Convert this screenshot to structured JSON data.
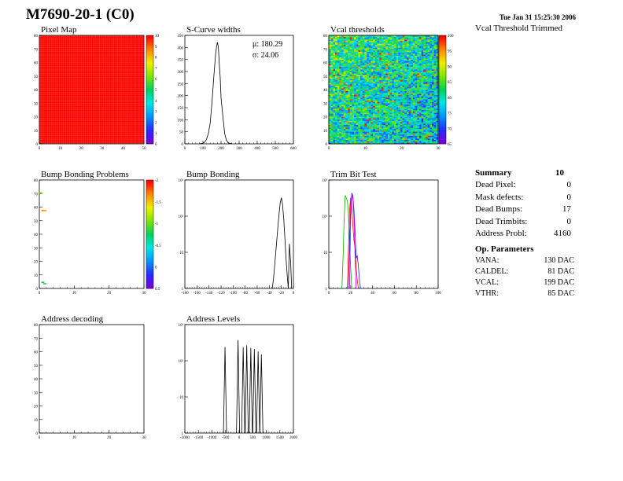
{
  "header": {
    "title": "M7690-20-1 (C0)",
    "timestamp": "Tue Jan 31 15:25:30 2006",
    "subtitle": "Vcal Threshold Trimmed"
  },
  "colors": {
    "frame": "#000000",
    "red": "#ff0000",
    "green": "#00b000",
    "blue": "#2020ff",
    "magenta": "#e000e0"
  },
  "summary": {
    "title": "Summary",
    "total": "10",
    "rows": [
      {
        "label": "Dead Pixel:",
        "value": "0"
      },
      {
        "label": "Mask defects:",
        "value": "0"
      },
      {
        "label": "Dead Bumps:",
        "value": "17"
      },
      {
        "label": "Dead Trimbits:",
        "value": "0"
      },
      {
        "label": "Address Probl:",
        "value": "4160"
      }
    ]
  },
  "op_params": {
    "title": "Op. Parameters",
    "rows": [
      {
        "label": "VANA:",
        "value": "130 DAC"
      },
      {
        "label": "CALDEL:",
        "value": "81 DAC"
      },
      {
        "label": "VCAL:",
        "value": "199 DAC"
      },
      {
        "label": "VTHR:",
        "value": "85 DAC"
      }
    ]
  },
  "chart_data": [
    {
      "type": "heatmap",
      "title": "Pixel Map",
      "x_ticks": [
        "0",
        "10",
        "20",
        "30",
        "40",
        "50"
      ],
      "y_ticks": [
        "0",
        "10",
        "20",
        "30",
        "40",
        "50",
        "60",
        "70",
        "80"
      ],
      "palette_ticks": [
        "0",
        "1",
        "2",
        "3",
        "4",
        "5",
        "6",
        "7",
        "8",
        "9",
        "10"
      ],
      "uniform_value": 10
    },
    {
      "type": "line",
      "title": "S-Curve widths",
      "x_ticks": [
        "0",
        "100",
        "200",
        "300",
        "400",
        "500",
        "600"
      ],
      "y_ticks": [
        "0",
        "50",
        "100",
        "150",
        "200",
        "250",
        "300",
        "350",
        "400",
        "450"
      ],
      "xlim": [
        0,
        600
      ],
      "ylim": [
        0,
        470
      ],
      "stats": [
        "μ: 180.29",
        "σ: 24.06"
      ],
      "x": [
        80,
        100,
        110,
        120,
        130,
        140,
        150,
        160,
        170,
        175,
        180,
        185,
        190,
        195,
        200,
        210,
        220,
        230,
        240,
        260
      ],
      "y": [
        0,
        3,
        8,
        20,
        45,
        90,
        180,
        290,
        390,
        420,
        440,
        420,
        350,
        290,
        200,
        120,
        45,
        15,
        4,
        0
      ]
    },
    {
      "type": "heatmap",
      "title": "Vcal thresholds",
      "x_ticks": [
        "0",
        "10",
        "20",
        "30"
      ],
      "y_ticks": [
        "0",
        "10",
        "20",
        "30",
        "40",
        "50",
        "60",
        "70",
        "80"
      ],
      "palette_ticks": [
        "65",
        "70",
        "75",
        "80",
        "85",
        "90",
        "95",
        "100"
      ],
      "range": [
        63,
        103
      ]
    },
    {
      "type": "heatmap",
      "title": "Bump Bonding Problems",
      "x_ticks": [
        "0",
        "10",
        "20",
        "30"
      ],
      "y_ticks": [
        "0",
        "10",
        "20",
        "30",
        "40",
        "50",
        "60",
        "70",
        "80"
      ],
      "palette_ticks": [
        "0.5",
        "0",
        "-0.5",
        "-1",
        "-1.5",
        "-2"
      ],
      "hot_pixels": [
        [
          1,
          57
        ],
        [
          2,
          57
        ],
        [
          0,
          70
        ],
        [
          1,
          4
        ],
        [
          2,
          3
        ]
      ]
    },
    {
      "type": "line",
      "title": "Bump Bonding",
      "x_ticks": [
        "-180",
        "-160",
        "-140",
        "-120",
        "-100",
        "-80",
        "-60",
        "-40",
        "-20",
        "0"
      ],
      "y_ticks": [
        "1",
        "10",
        "10²",
        "10³"
      ],
      "log_y": true,
      "xlim": [
        -185,
        5
      ],
      "x": [
        -32,
        -30,
        -28,
        -26,
        -24,
        -22,
        -20,
        -18,
        -16,
        -14,
        -12,
        -10,
        -8,
        -6,
        -4,
        -2,
        0,
        2
      ],
      "y": [
        1,
        2,
        5,
        15,
        40,
        120,
        300,
        700,
        1000,
        600,
        200,
        50,
        10,
        3,
        1,
        30,
        8,
        1
      ]
    },
    {
      "type": "line",
      "title": "Trim Bit Test",
      "x_ticks": [
        "0",
        "20",
        "40",
        "60",
        "80",
        "100"
      ],
      "y_ticks": [
        "1",
        "10",
        "10²",
        "10³"
      ],
      "log_y": true,
      "xlim": [
        0,
        100
      ],
      "series": [
        {
          "color": "green",
          "x": [
            12,
            13,
            14,
            15,
            16,
            17,
            18,
            19,
            20,
            21,
            22
          ],
          "y": [
            1,
            10,
            200,
            1200,
            1000,
            800,
            300,
            40,
            5,
            1,
            1
          ]
        },
        {
          "color": "red",
          "x": [
            17,
            18,
            19,
            20,
            21,
            22,
            23,
            24,
            25,
            26,
            27
          ],
          "y": [
            1,
            20,
            400,
            1000,
            500,
            120,
            40,
            20,
            5,
            2,
            1
          ]
        },
        {
          "color": "blue",
          "x": [
            18,
            19,
            20,
            21,
            22,
            23,
            24,
            25,
            26,
            27,
            28,
            29,
            30
          ],
          "y": [
            1,
            30,
            600,
            1400,
            1200,
            400,
            80,
            10,
            12,
            6,
            2,
            1,
            1
          ]
        },
        {
          "color": "magenta",
          "x": [
            19,
            20,
            21,
            22,
            23,
            24,
            25
          ],
          "y": [
            1,
            200,
            1300,
            900,
            200,
            10,
            1
          ]
        }
      ]
    },
    {
      "type": "heatmap",
      "title": "Address decoding",
      "x_ticks": [
        "0",
        "10",
        "20",
        "30"
      ],
      "y_ticks": [
        "0",
        "10",
        "20",
        "30",
        "40",
        "50",
        "60",
        "70",
        "80"
      ]
    },
    {
      "type": "line",
      "title": "Address Levels",
      "x_ticks": [
        "-2000",
        "-1500",
        "-1000",
        "-500",
        "0",
        "500",
        "1000",
        "1500",
        "2000"
      ],
      "y_ticks": [
        "1",
        "10",
        "10²",
        "10³"
      ],
      "log_y": true,
      "xlim": [
        -2000,
        2000
      ],
      "peaks": [
        {
          "x": -520,
          "y": 700
        },
        {
          "x": -40,
          "y": 1200
        },
        {
          "x": 150,
          "y": 700
        },
        {
          "x": 280,
          "y": 800
        },
        {
          "x": 430,
          "y": 650
        },
        {
          "x": 560,
          "y": 600
        },
        {
          "x": 700,
          "y": 500
        },
        {
          "x": 820,
          "y": 400
        }
      ]
    }
  ]
}
